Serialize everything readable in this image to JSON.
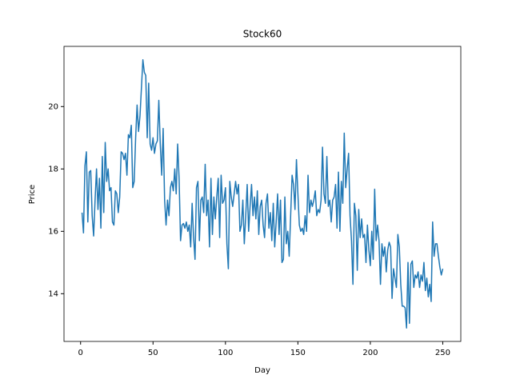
{
  "chart_data": {
    "type": "line",
    "title": "Stock60",
    "x_label": "Day",
    "y_label": "Price",
    "x": [
      1,
      2,
      3,
      4,
      5,
      6,
      7,
      8,
      9,
      10,
      11,
      12,
      13,
      14,
      15,
      16,
      17,
      18,
      19,
      20,
      21,
      22,
      23,
      24,
      25,
      26,
      27,
      28,
      29,
      30,
      31,
      32,
      33,
      34,
      35,
      36,
      37,
      38,
      39,
      40,
      41,
      42,
      43,
      44,
      45,
      46,
      47,
      48,
      49,
      50,
      51,
      52,
      53,
      54,
      55,
      56,
      57,
      58,
      59,
      60,
      61,
      62,
      63,
      64,
      65,
      66,
      67,
      68,
      69,
      70,
      71,
      72,
      73,
      74,
      75,
      76,
      77,
      78,
      79,
      80,
      81,
      82,
      83,
      84,
      85,
      86,
      87,
      88,
      89,
      90,
      91,
      92,
      93,
      94,
      95,
      96,
      97,
      98,
      99,
      100,
      101,
      102,
      103,
      104,
      105,
      106,
      107,
      108,
      109,
      110,
      111,
      112,
      113,
      114,
      115,
      116,
      117,
      118,
      119,
      120,
      121,
      122,
      123,
      124,
      125,
      126,
      127,
      128,
      129,
      130,
      131,
      132,
      133,
      134,
      135,
      136,
      137,
      138,
      139,
      140,
      141,
      142,
      143,
      144,
      145,
      146,
      147,
      148,
      149,
      150,
      151,
      152,
      153,
      154,
      155,
      156,
      157,
      158,
      159,
      160,
      161,
      162,
      163,
      164,
      165,
      166,
      167,
      168,
      169,
      170,
      171,
      172,
      173,
      174,
      175,
      176,
      177,
      178,
      179,
      180,
      181,
      182,
      183,
      184,
      185,
      186,
      187,
      188,
      189,
      190,
      191,
      192,
      193,
      194,
      195,
      196,
      197,
      198,
      199,
      200,
      201,
      202,
      203,
      204,
      205,
      206,
      207,
      208,
      209,
      210,
      211,
      212,
      213,
      214,
      215,
      216,
      217,
      218,
      219,
      220,
      221,
      222,
      223,
      224,
      225,
      226,
      227,
      228,
      229,
      230,
      231,
      232,
      233,
      234,
      235,
      236,
      237,
      238,
      239,
      240,
      241,
      242,
      243,
      244,
      245,
      246,
      247,
      248,
      249,
      250
    ],
    "series": [
      {
        "name": "Stock60",
        "color": "#1f77b4",
        "values": [
          16.6,
          15.95,
          18.1,
          18.55,
          16.3,
          17.9,
          17.95,
          16.5,
          15.85,
          17.0,
          18.0,
          16.7,
          17.7,
          16.1,
          18.4,
          16.6,
          18.85,
          17.6,
          18.0,
          17.3,
          17.4,
          16.3,
          16.2,
          17.3,
          17.2,
          16.6,
          17.1,
          18.55,
          18.5,
          18.3,
          18.5,
          17.8,
          19.1,
          19.0,
          19.4,
          17.4,
          17.6,
          19.0,
          20.05,
          19.2,
          19.7,
          20.6,
          21.5,
          21.1,
          21.0,
          19.0,
          20.75,
          18.8,
          18.6,
          19.0,
          18.5,
          18.8,
          18.9,
          20.2,
          18.8,
          17.8,
          19.3,
          17.0,
          16.2,
          17.0,
          16.5,
          17.4,
          17.6,
          17.3,
          18.0,
          17.2,
          18.8,
          17.7,
          15.7,
          16.2,
          16.25,
          16.1,
          16.3,
          16.0,
          16.2,
          15.5,
          16.9,
          15.8,
          15.1,
          17.4,
          17.6,
          15.7,
          17.0,
          17.1,
          16.6,
          18.15,
          16.5,
          17.0,
          15.5,
          17.7,
          15.9,
          17.1,
          16.4,
          17.1,
          17.7,
          15.8,
          17.8,
          16.9,
          17.0,
          17.4,
          15.6,
          14.8,
          17.6,
          17.1,
          16.8,
          17.2,
          17.6,
          17.2,
          17.5,
          16.0,
          16.2,
          17.0,
          15.6,
          16.5,
          17.5,
          16.0,
          16.8,
          17.5,
          16.5,
          17.1,
          16.4,
          17.3,
          15.9,
          16.8,
          17.0,
          16.2,
          15.8,
          16.9,
          17.2,
          16.1,
          16.6,
          15.7,
          16.9,
          15.5,
          16.3,
          17.2,
          15.9,
          17.0,
          15.0,
          15.1,
          17.1,
          15.6,
          16.0,
          15.2,
          16.5,
          17.8,
          17.5,
          16.7,
          18.3,
          17.2,
          16.2,
          16.0,
          16.1,
          15.9,
          16.5,
          16.0,
          17.8,
          16.6,
          17.0,
          16.8,
          17.0,
          17.3,
          16.5,
          16.7,
          16.6,
          17.0,
          18.7,
          17.2,
          16.9,
          18.4,
          16.8,
          17.0,
          16.3,
          17.0,
          17.1,
          17.5,
          16.1,
          17.9,
          16.0,
          17.6,
          16.9,
          19.15,
          17.4,
          18.0,
          18.5,
          16.5,
          15.7,
          14.3,
          16.9,
          16.5,
          14.75,
          16.7,
          15.8,
          16.4,
          15.8,
          15.9,
          15.0,
          16.2,
          15.4,
          14.9,
          16.0,
          15.1,
          17.35,
          15.7,
          16.2,
          15.7,
          14.3,
          15.6,
          15.2,
          15.5,
          14.7,
          15.4,
          15.65,
          15.5,
          13.85,
          14.8,
          14.5,
          14.2,
          15.9,
          15.5,
          14.3,
          13.6,
          13.6,
          13.55,
          12.9,
          15.0,
          13.05,
          14.95,
          15.05,
          14.2,
          14.6,
          14.5,
          14.7,
          14.2,
          14.6,
          14.4,
          15.0,
          14.1,
          14.5,
          13.9,
          14.3,
          13.75,
          16.3,
          15.2,
          15.6,
          15.6,
          15.2,
          14.85,
          14.6,
          14.8
        ]
      }
    ],
    "xlim": [
      -11.45,
      262.45
    ],
    "ylim": [
      12.47,
      21.93
    ],
    "xticks": [
      0,
      50,
      100,
      150,
      200,
      250
    ],
    "yticks": [
      14,
      16,
      18,
      20
    ]
  }
}
